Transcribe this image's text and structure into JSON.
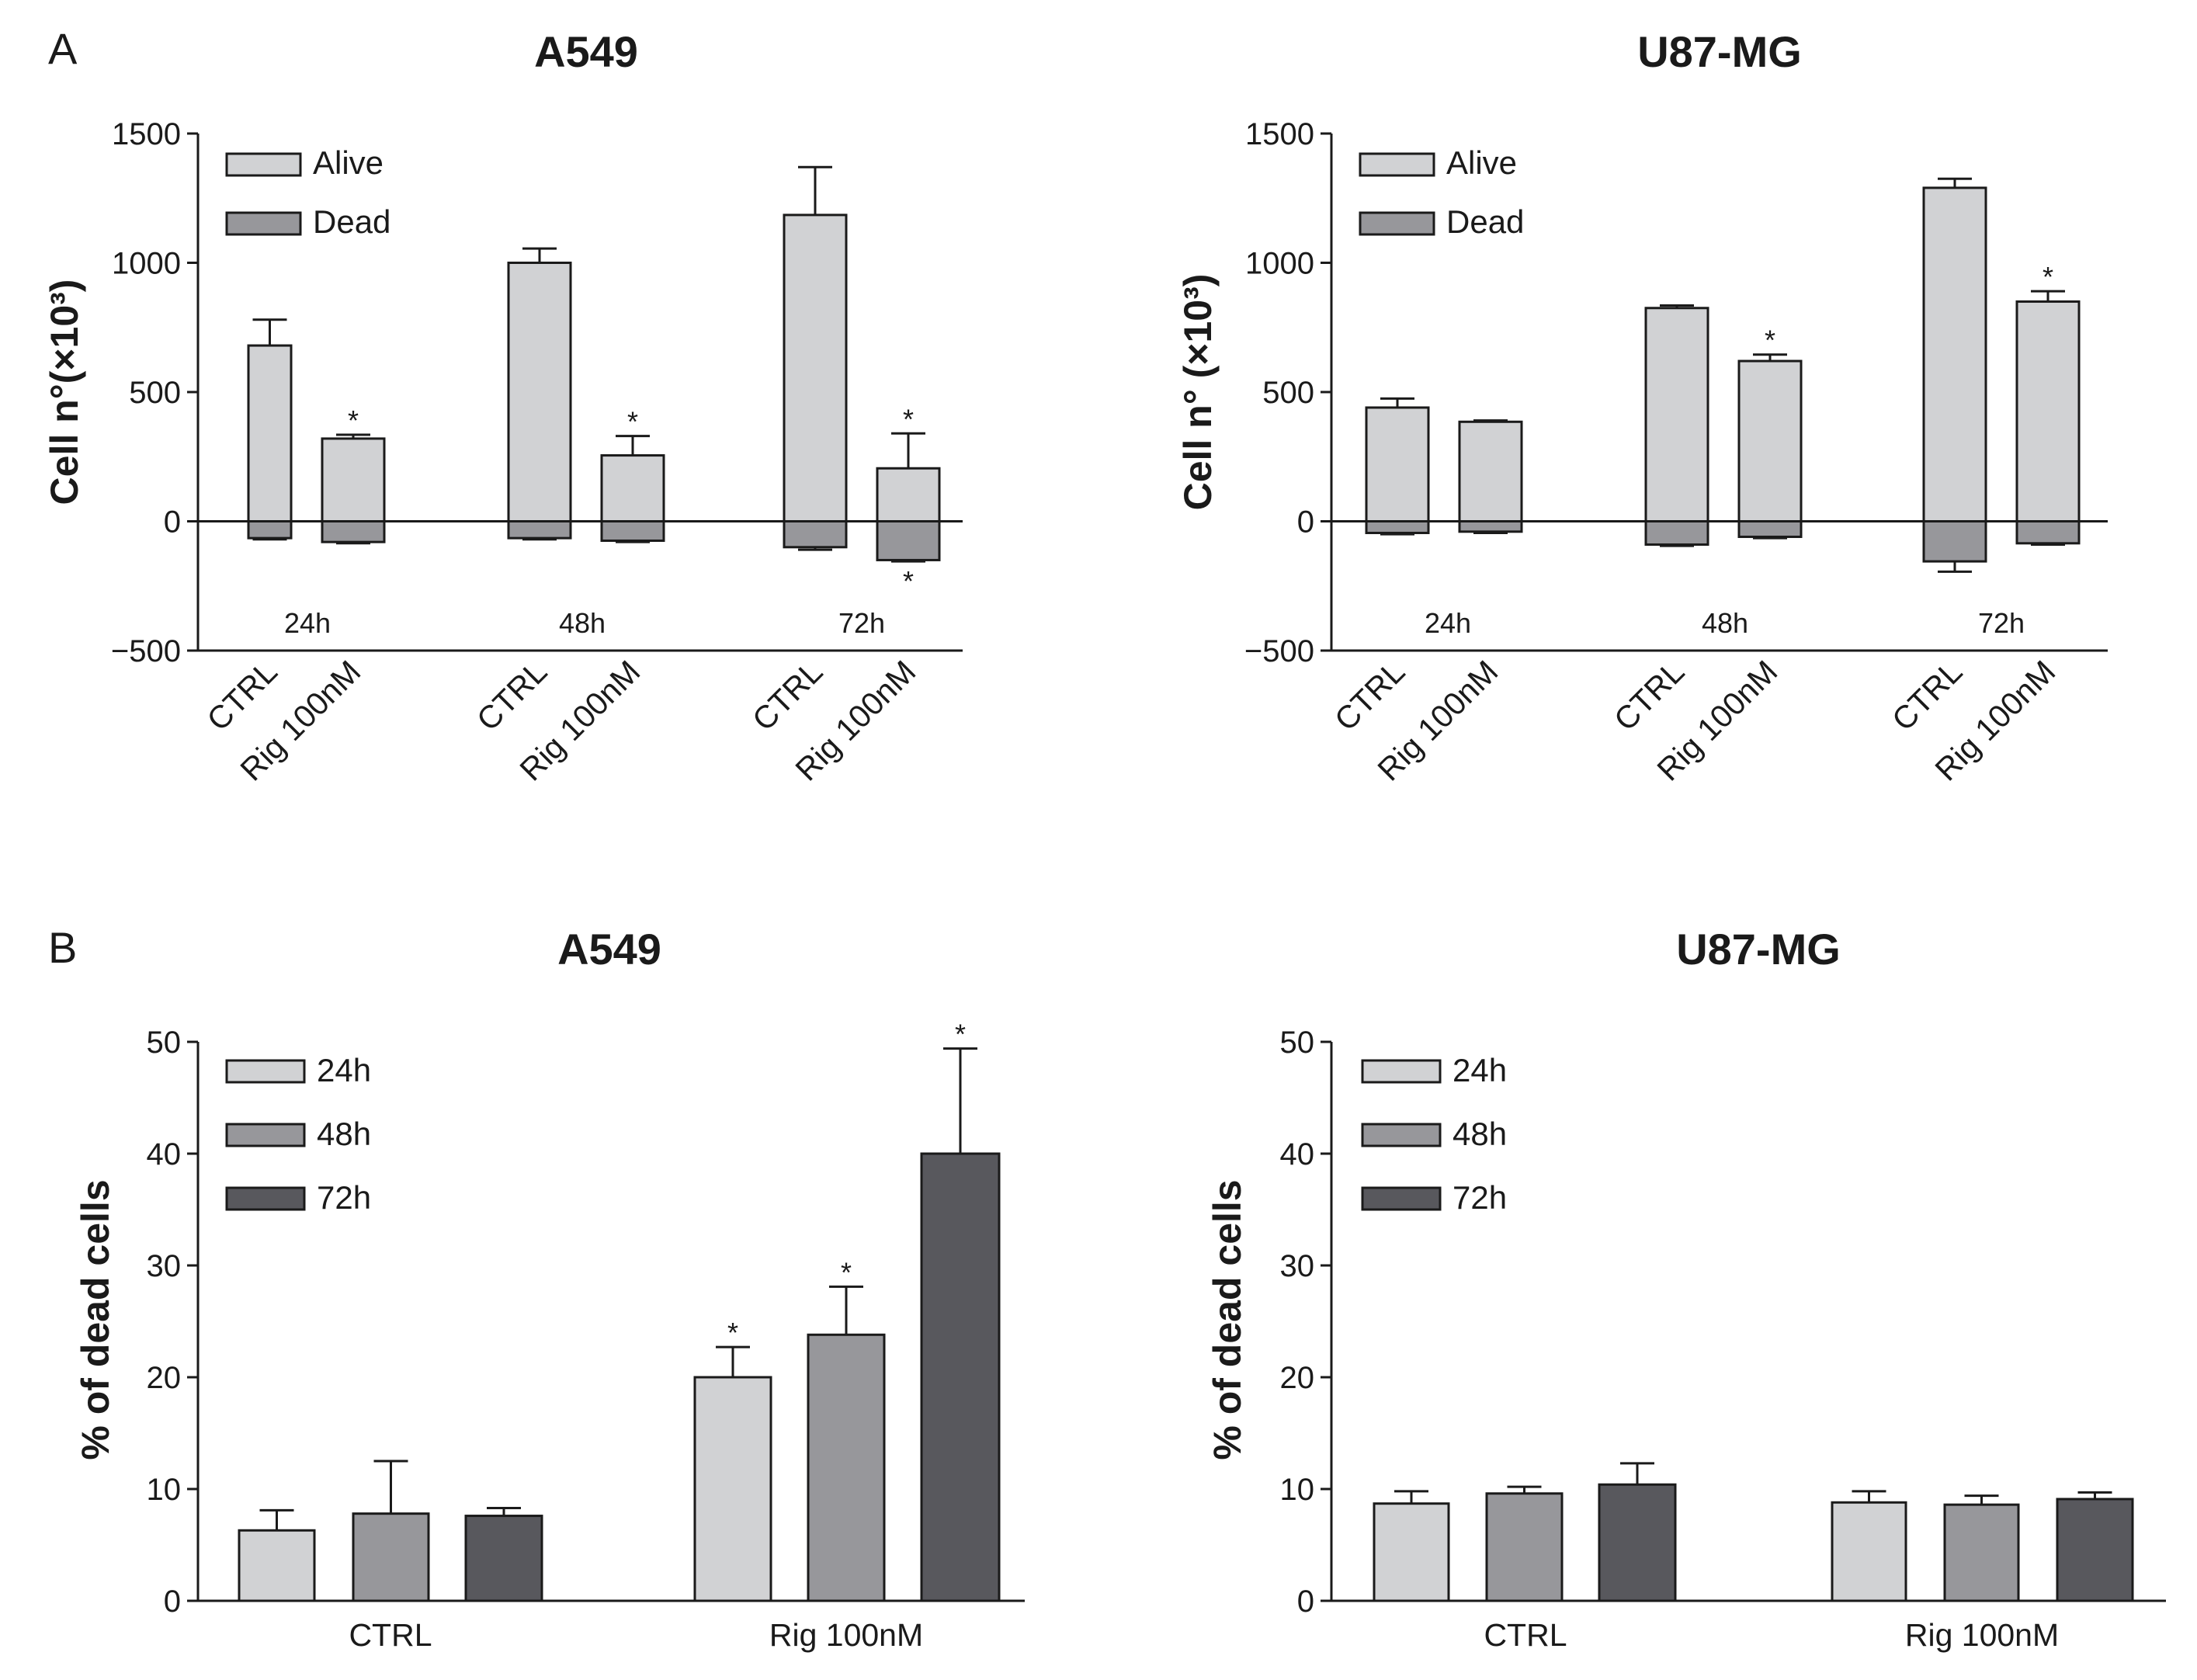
{
  "figure": {
    "panel_labels": [
      "A",
      "B"
    ]
  },
  "colors": {
    "alive": "#d1d2d4",
    "dead": "#97979b",
    "h24": "#d1d2d4",
    "h48": "#97979b",
    "h72": "#58585d",
    "stroke": "#1a1a1a"
  },
  "chart_data": [
    {
      "id": "A-A549",
      "type": "bar",
      "title": "A549",
      "ylabel": "Cell n°(×10³)",
      "ylim": [
        -500,
        1500
      ],
      "yticks": [
        -500,
        0,
        500,
        1000,
        1500
      ],
      "time_labels": [
        "24h",
        "48h",
        "72h"
      ],
      "categories": [
        "CTRL",
        "Rig 100nM",
        "CTRL",
        "Rig 100nM",
        "CTRL",
        "Rig 100nM"
      ],
      "legend": [
        "Alive",
        "Dead"
      ],
      "series": [
        {
          "name": "Alive",
          "values": [
            680,
            320,
            1000,
            255,
            1185,
            205
          ],
          "errors": [
            100,
            15,
            55,
            75,
            185,
            135
          ],
          "sig": [
            false,
            true,
            false,
            true,
            false,
            true
          ]
        },
        {
          "name": "Dead",
          "values": [
            -65,
            -80,
            -65,
            -75,
            -100,
            -150
          ],
          "errors": [
            5,
            5,
            5,
            5,
            10,
            5
          ],
          "sig": [
            false,
            false,
            false,
            false,
            false,
            true
          ]
        }
      ]
    },
    {
      "id": "A-U87",
      "type": "bar",
      "title": "U87-MG",
      "ylabel": "Cell n° (×10³)",
      "ylim": [
        -500,
        1500
      ],
      "yticks": [
        -500,
        0,
        500,
        1000,
        1500
      ],
      "time_labels": [
        "24h",
        "48h",
        "72h"
      ],
      "categories": [
        "CTRL",
        "Rig 100nM",
        "CTRL",
        "Rig 100nM",
        "CTRL",
        "Rig 100nM"
      ],
      "legend": [
        "Alive",
        "Dead"
      ],
      "series": [
        {
          "name": "Alive",
          "values": [
            440,
            385,
            825,
            620,
            1290,
            850
          ],
          "errors": [
            35,
            5,
            10,
            25,
            35,
            40
          ],
          "sig": [
            false,
            false,
            false,
            true,
            false,
            true
          ]
        },
        {
          "name": "Dead",
          "values": [
            -45,
            -40,
            -90,
            -60,
            -155,
            -85
          ],
          "errors": [
            5,
            5,
            5,
            5,
            40,
            5
          ],
          "sig": [
            false,
            false,
            false,
            false,
            false,
            false
          ]
        }
      ]
    },
    {
      "id": "B-A549",
      "type": "bar",
      "title": "A549",
      "ylabel": "% of dead cells",
      "ylim": [
        0,
        50
      ],
      "yticks": [
        0,
        10,
        20,
        30,
        40,
        50
      ],
      "categories": [
        "CTRL",
        "Rig 100nM"
      ],
      "legend": [
        "24h",
        "48h",
        "72h"
      ],
      "series": [
        {
          "name": "24h",
          "values": [
            6.3,
            20.0
          ],
          "errors": [
            1.8,
            2.7
          ],
          "sig": [
            false,
            true
          ]
        },
        {
          "name": "48h",
          "values": [
            7.8,
            23.8
          ],
          "errors": [
            4.7,
            4.3
          ],
          "sig": [
            false,
            true
          ]
        },
        {
          "name": "72h",
          "values": [
            7.6,
            40.0
          ],
          "errors": [
            0.7,
            9.4
          ],
          "sig": [
            false,
            true
          ]
        }
      ]
    },
    {
      "id": "B-U87",
      "type": "bar",
      "title": "U87-MG",
      "ylabel": "% of dead cells",
      "ylim": [
        0,
        50
      ],
      "yticks": [
        0,
        10,
        20,
        30,
        40,
        50
      ],
      "categories": [
        "CTRL",
        "Rig 100nM"
      ],
      "legend": [
        "24h",
        "48h",
        "72h"
      ],
      "series": [
        {
          "name": "24h",
          "values": [
            8.7,
            8.8
          ],
          "errors": [
            1.1,
            1.0
          ],
          "sig": [
            false,
            false
          ]
        },
        {
          "name": "48h",
          "values": [
            9.6,
            8.6
          ],
          "errors": [
            0.6,
            0.8
          ],
          "sig": [
            false,
            false
          ]
        },
        {
          "name": "72h",
          "values": [
            10.4,
            9.1
          ],
          "errors": [
            1.9,
            0.6
          ],
          "sig": [
            false,
            false
          ]
        }
      ]
    }
  ],
  "annotations": {
    "significance_mark": "*"
  }
}
